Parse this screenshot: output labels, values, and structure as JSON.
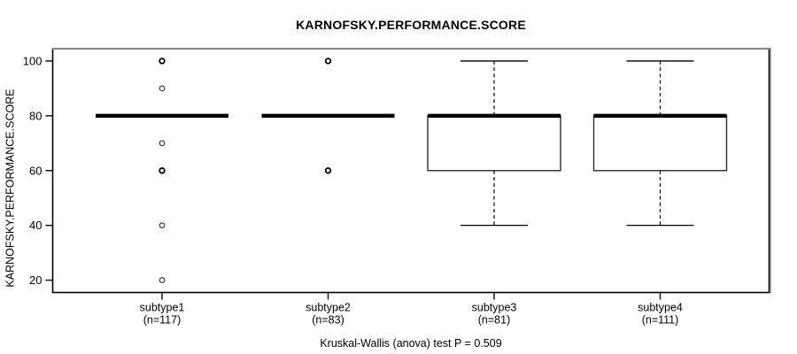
{
  "chart_data": {
    "type": "boxplot",
    "title": "KARNOFSKY.PERFORMANCE.SCORE",
    "ylabel": "KARNOFSKY.PERFORMANCE.SCORE",
    "xlabel": "",
    "caption": "Kruskal-Wallis (anova) test P = 0.509",
    "ylim": [
      15.5,
      104.5
    ],
    "yticks": [
      20,
      40,
      60,
      80,
      100
    ],
    "grid": false,
    "legend": null,
    "groups": [
      {
        "label": "subtype1",
        "sublabel": "(n=117)",
        "n": 117,
        "q1": 80,
        "median": 80,
        "q3": 80,
        "whisker_low": 80,
        "whisker_high": 80,
        "outliers": [
          100,
          90,
          70,
          60,
          40,
          20
        ],
        "heavy_outliers": [
          100,
          60
        ]
      },
      {
        "label": "subtype2",
        "sublabel": "(n=83)",
        "n": 83,
        "q1": 80,
        "median": 80,
        "q3": 80,
        "whisker_low": 80,
        "whisker_high": 80,
        "outliers": [
          100,
          60
        ],
        "heavy_outliers": [
          100,
          60
        ]
      },
      {
        "label": "subtype3",
        "sublabel": "(n=81)",
        "n": 81,
        "q1": 60,
        "median": 80,
        "q3": 80,
        "whisker_low": 40,
        "whisker_high": 100,
        "outliers": [],
        "heavy_outliers": []
      },
      {
        "label": "subtype4",
        "sublabel": "(n=111)",
        "n": 111,
        "q1": 60,
        "median": 80,
        "q3": 80,
        "whisker_low": 40,
        "whisker_high": 100,
        "outliers": [],
        "heavy_outliers": []
      }
    ],
    "colors": {
      "line": "#000000",
      "box_fill": "#ffffff",
      "box_stroke": "#2b2b2b",
      "frame_top_gray": "#8a8a8a",
      "background": "#ffffff"
    }
  }
}
